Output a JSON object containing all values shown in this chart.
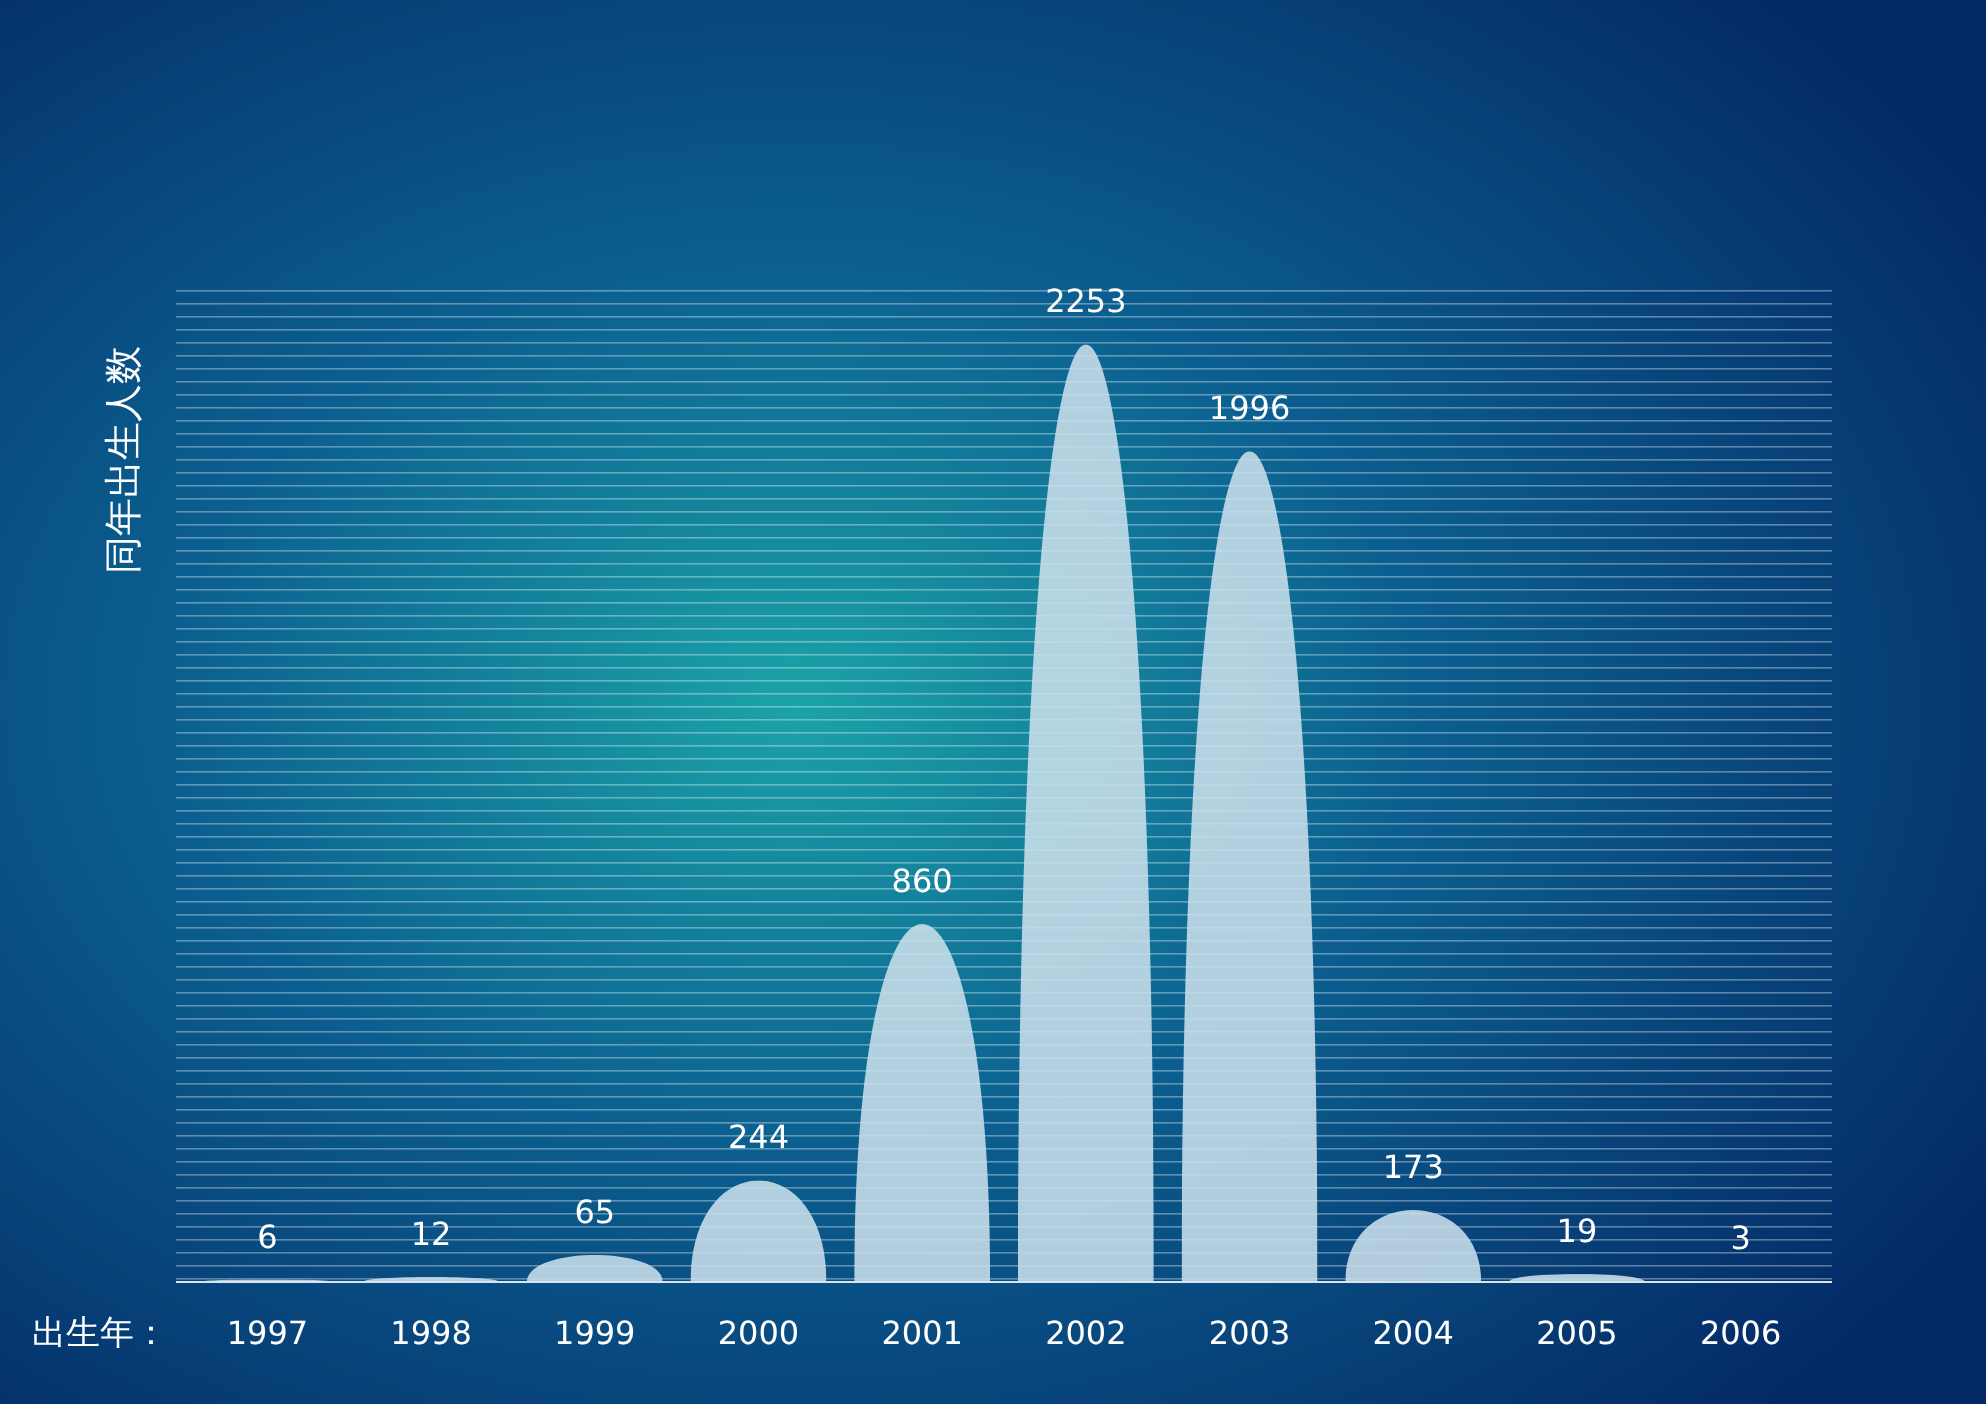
{
  "chart_data": {
    "type": "bar",
    "ylabel": "同年出生人数",
    "xlabel": "出生年：",
    "categories": [
      "1997",
      "1998",
      "1999",
      "2000",
      "2001",
      "2002",
      "2003",
      "2004",
      "2005",
      "2006"
    ],
    "values": [
      6,
      12,
      65,
      244,
      860,
      2253,
      1996,
      173,
      19,
      3
    ],
    "color": "#c9dfeb",
    "data_labels": true
  }
}
